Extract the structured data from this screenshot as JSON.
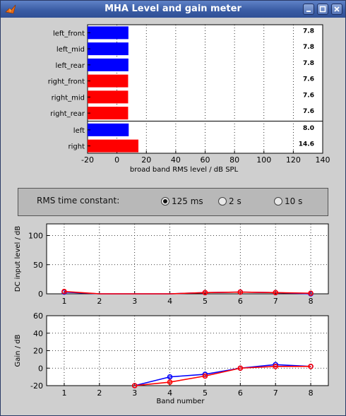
{
  "window": {
    "title": "MHA Level and gain meter"
  },
  "level_chart": {
    "type": "bar",
    "orientation": "horizontal",
    "xlabel": "broad band RMS level / dB SPL",
    "xlim": [
      -20,
      140
    ],
    "xticks": [
      "-20",
      "0",
      "20",
      "40",
      "60",
      "80",
      "100",
      "120",
      "140"
    ],
    "grid": true,
    "bars": [
      {
        "label": "left_front",
        "value": 7.8,
        "value_text": "7.8",
        "color": "#0000ff"
      },
      {
        "label": "left_mid",
        "value": 7.8,
        "value_text": "7.8",
        "color": "#0000ff"
      },
      {
        "label": "left_rear",
        "value": 7.8,
        "value_text": "7.8",
        "color": "#0000ff"
      },
      {
        "label": "right_front",
        "value": 7.6,
        "value_text": "7.6",
        "color": "#ff0000"
      },
      {
        "label": "right_mid",
        "value": 7.6,
        "value_text": "7.6",
        "color": "#ff0000"
      },
      {
        "label": "right_rear",
        "value": 7.6,
        "value_text": "7.6",
        "color": "#ff0000"
      },
      {
        "label": "left",
        "value": 8.0,
        "value_text": "8.0",
        "color": "#0000ff"
      },
      {
        "label": "right",
        "value": 14.6,
        "value_text": "14.6",
        "color": "#ff0000"
      }
    ]
  },
  "rms_panel": {
    "label": "RMS time constant:",
    "options": [
      {
        "label": "125 ms",
        "selected": true
      },
      {
        "label": "2 s",
        "selected": false
      },
      {
        "label": "10 s",
        "selected": false
      }
    ]
  },
  "chart_data": [
    {
      "type": "line",
      "ylabel": "DC input level / dB",
      "xlabel": "",
      "x": [
        1,
        2,
        3,
        4,
        5,
        6,
        7,
        8
      ],
      "xticks": [
        "1",
        "2",
        "3",
        "4",
        "5",
        "6",
        "7",
        "8"
      ],
      "ylim": [
        0,
        120
      ],
      "yticks": [
        "0",
        "50",
        "100"
      ],
      "grid": true,
      "series": [
        {
          "color": "#0000ff",
          "values": [
            3,
            0,
            0,
            0,
            2,
            3,
            2,
            0
          ]
        },
        {
          "color": "#ff0000",
          "values": [
            4,
            0,
            0,
            0,
            2,
            3,
            2,
            1
          ]
        }
      ],
      "markers_at": [
        1,
        5,
        6,
        7,
        8
      ]
    },
    {
      "type": "line",
      "ylabel": "Gain / dB",
      "xlabel": "Band number",
      "x": [
        1,
        2,
        3,
        4,
        5,
        6,
        7,
        8
      ],
      "xticks": [
        "1",
        "2",
        "3",
        "4",
        "5",
        "6",
        "7",
        "8"
      ],
      "ylim": [
        -20,
        60
      ],
      "yticks": [
        "-20",
        "0",
        "20",
        "40",
        "60"
      ],
      "grid": true,
      "series": [
        {
          "color": "#0000ff",
          "x": [
            3,
            4,
            5,
            6,
            7,
            8
          ],
          "values": [
            -20,
            -10,
            -7,
            0,
            4,
            2
          ]
        },
        {
          "color": "#ff0000",
          "x": [
            3,
            4,
            5,
            6,
            7,
            8
          ],
          "values": [
            -20,
            -16,
            -9,
            0,
            2,
            2
          ]
        }
      ]
    }
  ]
}
